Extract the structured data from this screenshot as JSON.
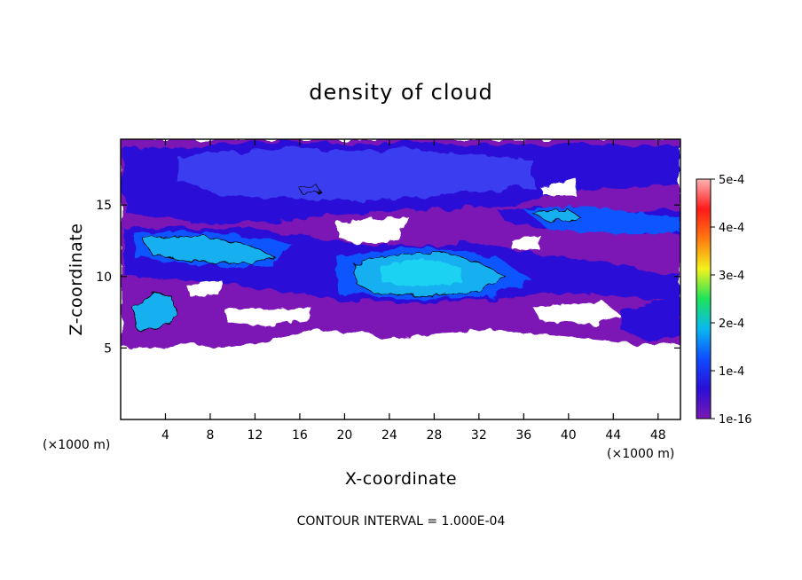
{
  "chart_data": {
    "type": "heatmap",
    "title": "density of cloud",
    "xlabel": "X-coordinate",
    "ylabel": "Z-coordinate",
    "x_unit": "(×1000 m)",
    "z_unit": "(×1000 m)",
    "xlim": [
      0,
      50
    ],
    "ylim": [
      0,
      19.6
    ],
    "x_ticks": [
      4,
      8,
      12,
      16,
      20,
      24,
      28,
      32,
      36,
      40,
      44,
      48
    ],
    "y_ticks": [
      5,
      10,
      15
    ],
    "colorbar": {
      "min": 1e-16,
      "max": 0.0005,
      "tick_labels": [
        "1e-16",
        "1e-4",
        "2e-4",
        "3e-4",
        "4e-4",
        "5e-4"
      ],
      "tick_values": [
        1e-16,
        0.0001,
        0.0002,
        0.0003,
        0.0004,
        0.0005
      ],
      "colors": [
        "#7b19b4",
        "#2a0fd6",
        "#0e4cff",
        "#0ab8ef",
        "#1de35a",
        "#f2f21d",
        "#ff7a10",
        "#ff1a1a",
        "#ffb3b3"
      ]
    },
    "contour_interval_label": "CONTOUR INTERVAL = 1.000E-04",
    "cloud_fields": [
      {
        "x": [
          0,
          50
        ],
        "z": [
          5.2,
          19.6
        ],
        "level": 1e-05
      },
      {
        "x": [
          0,
          50
        ],
        "z": [
          16.0,
          19.2
        ],
        "level": 7e-05
      },
      {
        "x": [
          0,
          24
        ],
        "z": [
          10.8,
          14.0
        ],
        "level": 0.00012
      },
      {
        "x": [
          18,
          35
        ],
        "z": [
          8.8,
          12.4
        ],
        "level": 0.00014
      },
      {
        "x": [
          0,
          7
        ],
        "z": [
          6.0,
          9.2
        ],
        "level": 0.00013
      },
      {
        "x": [
          34,
          50
        ],
        "z": [
          13.2,
          15.2
        ],
        "level": 9e-05
      }
    ]
  }
}
